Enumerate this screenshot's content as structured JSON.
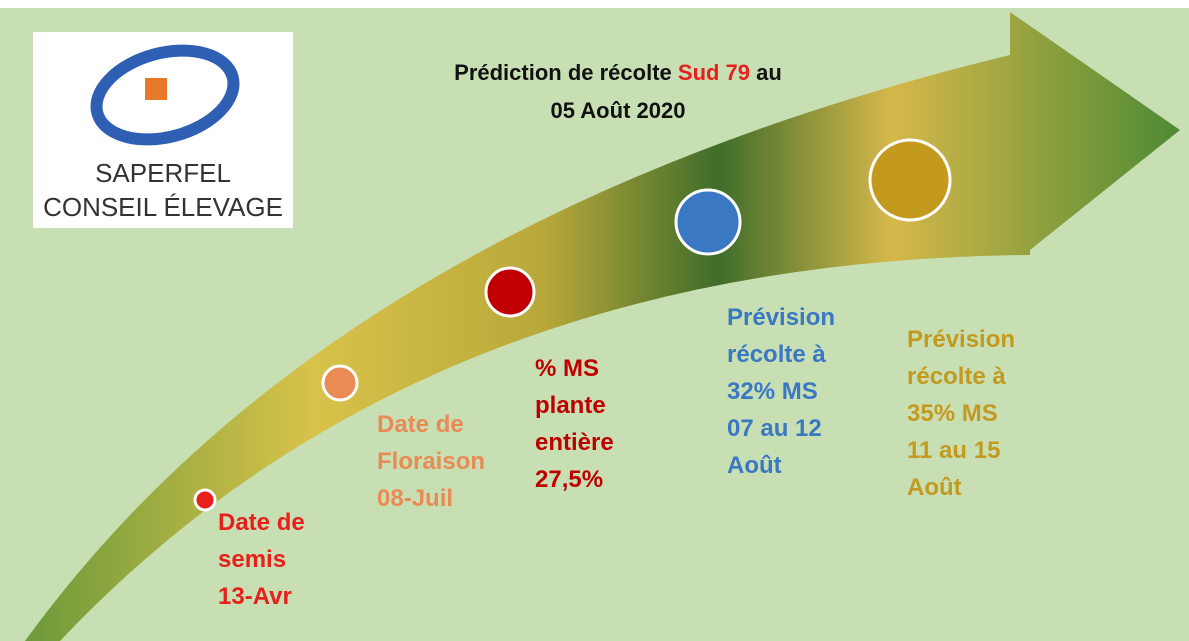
{
  "logo": {
    "line1": "SAPERFEL",
    "line2": "CONSEIL ÉLEVAGE"
  },
  "title": {
    "line1_start": "Prédiction de récolte",
    "line1_highlight": "Sud 79",
    "line1_end": "au",
    "line2": "05 Août 2020",
    "highlight_color": "#e8201c"
  },
  "milestones": [
    {
      "lines": [
        "Date de",
        "semis",
        "13-Avr"
      ],
      "color": "#e8201c"
    },
    {
      "lines": [
        "Date de",
        "Floraison",
        "08-Juil"
      ],
      "color": "#ea8a55"
    },
    {
      "lines": [
        "% MS",
        "plante",
        "entière",
        "27,5%"
      ],
      "color": "#c00000"
    },
    {
      "lines": [
        "Prévision",
        "récolte à",
        "32% MS",
        "07 au 12",
        "Août"
      ],
      "color": "#3a78c4"
    },
    {
      "lines": [
        "Prévision",
        "récolte à",
        "35% MS",
        "11 au 15",
        "Août"
      ],
      "color": "#c49a1e"
    }
  ]
}
